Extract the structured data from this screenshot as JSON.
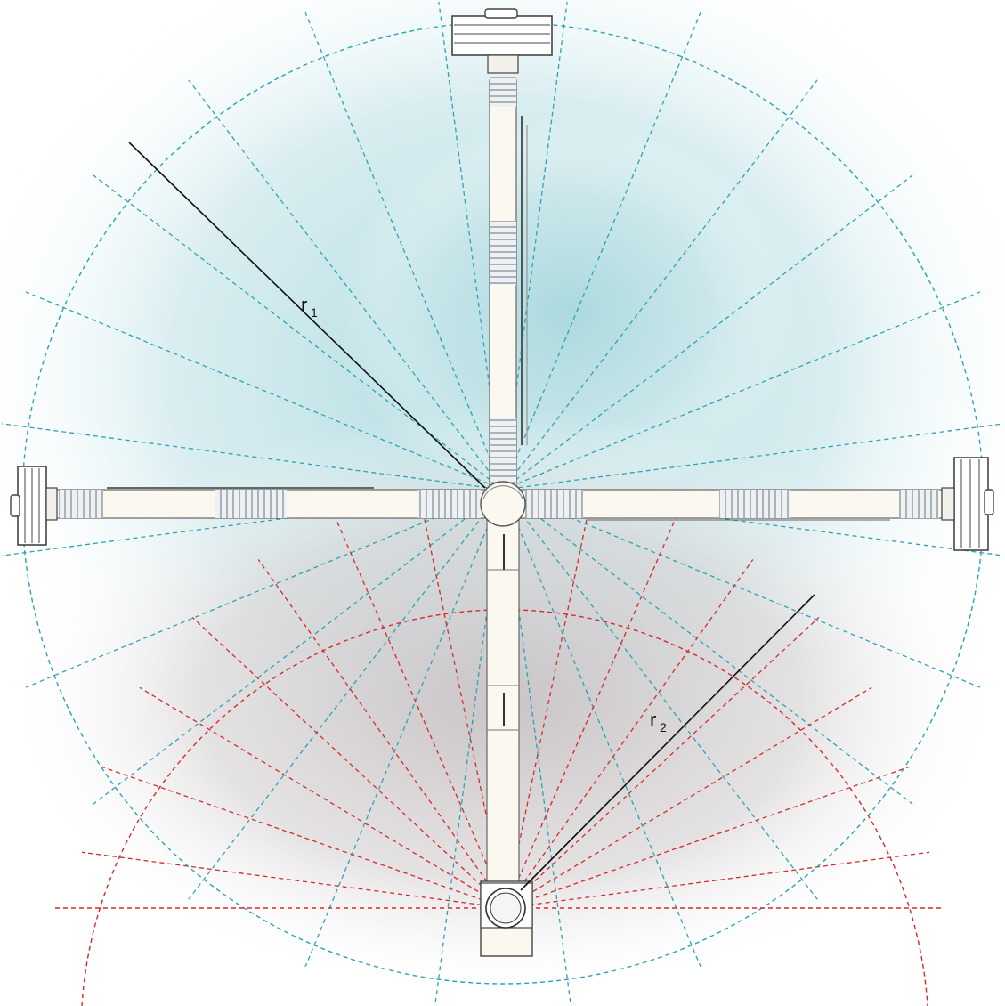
{
  "labels": {
    "r1": {
      "main": "r",
      "sub": "1"
    },
    "r2": {
      "main": "r",
      "sub": "2"
    }
  },
  "colors": {
    "cyan_dashes": "#2aa3b5",
    "red_dashes": "#d62a2a",
    "radius_line": "#111111",
    "blue_glow": "#bfe3e8",
    "gray_glow": "#cfcbcc",
    "tube_fill": "#fbf8ef",
    "tube_stroke": "#555555"
  },
  "icons": {
    "top_end": "fan-housing-icon",
    "left_end": "fan-housing-icon",
    "right_end": "fan-housing-icon",
    "bottom_end": "rotary-base-icon",
    "hub": "central-joint-icon"
  },
  "dashed_rays": {
    "upper_count": 24,
    "lower_count": 15
  }
}
